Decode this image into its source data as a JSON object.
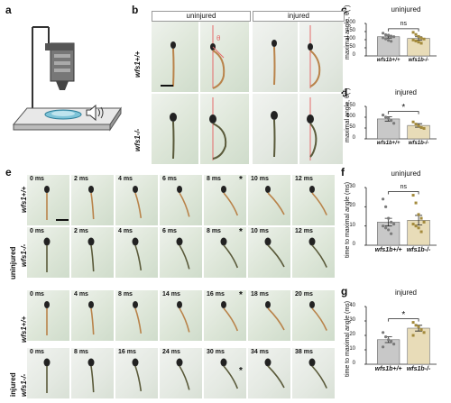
{
  "panels": {
    "a": "a",
    "b": "b",
    "c": "c",
    "d": "d",
    "e": "e",
    "f": "f",
    "g": "g"
  },
  "b": {
    "col_uninjured": "uninjured",
    "col_injured": "injured",
    "row1": "wfs1+/+",
    "row2": "wfs1-/-",
    "theta": "θ"
  },
  "e": {
    "group_uninjured": "uninjured",
    "group_injured": "injured",
    "genotype_wt": "wfs1+/+",
    "genotype_ko": "wfs1-/-",
    "row_uninj_wt": [
      "0 ms",
      "2 ms",
      "4 ms",
      "6 ms",
      "8 ms",
      "10 ms",
      "12 ms"
    ],
    "row_uninj_ko": [
      "0 ms",
      "2 ms",
      "4 ms",
      "6 ms",
      "8 ms",
      "10 ms",
      "12 ms"
    ],
    "row_inj_wt": [
      "0 ms",
      "4 ms",
      "8 ms",
      "14 ms",
      "16 ms",
      "18 ms",
      "20 ms"
    ],
    "row_inj_ko": [
      "0 ms",
      "8 ms",
      "16 ms",
      "24 ms",
      "30 ms",
      "34 ms",
      "38 ms"
    ],
    "star": "*"
  },
  "colors": {
    "wt_bar": "#c8c8c8",
    "ko_bar": "#e8dcb8",
    "wt_dot": "#7a7a7a",
    "ko_dot": "#a38a3c",
    "ref_line": "#e46a6a"
  },
  "chart_data": [
    {
      "panel": "c",
      "type": "bar",
      "title": "uninjured",
      "ylabel": "maximal angle, θ(°)",
      "categories": [
        "wfs1b+/+",
        "wfs1b-/-"
      ],
      "values": [
        118,
        108
      ],
      "errors": [
        8,
        10
      ],
      "ylim": [
        0,
        200
      ],
      "yticks": [
        0,
        50,
        100,
        150,
        200
      ],
      "significance": "ns",
      "points": [
        [
          140,
          130,
          128,
          122,
          118,
          112,
          105,
          96,
          90
        ],
        [
          145,
          132,
          120,
          110,
          104,
          98,
          92,
          85,
          78
        ]
      ]
    },
    {
      "panel": "d",
      "type": "bar",
      "title": "injured",
      "ylabel": "maximal angle, θ(°)",
      "categories": [
        "wfs1b+/+",
        "wfs1b-/-"
      ],
      "values": [
        92,
        62
      ],
      "errors": [
        10,
        8
      ],
      "ylim": [
        0,
        150
      ],
      "yticks": [
        0,
        50,
        100,
        150
      ],
      "significance": "*",
      "points": [
        [
          110,
          100,
          95,
          85,
          72
        ],
        [
          78,
          68,
          60,
          52,
          48
        ]
      ]
    },
    {
      "panel": "f",
      "type": "bar",
      "title": "uninjured",
      "ylabel": "time to maximal angle (ms)",
      "categories": [
        "wfs1b+/+",
        "wfs1b-/-"
      ],
      "values": [
        12,
        13
      ],
      "errors": [
        2,
        2.5
      ],
      "ylim": [
        0,
        30
      ],
      "yticks": [
        0,
        10,
        20,
        30
      ],
      "significance": "ns",
      "points": [
        [
          24,
          20,
          14,
          12,
          11,
          10,
          9,
          8,
          6
        ],
        [
          26,
          22,
          16,
          14,
          12,
          11,
          10,
          9,
          7
        ]
      ]
    },
    {
      "panel": "g",
      "type": "bar",
      "title": "injured",
      "ylabel": "time to maximal angle (ms)",
      "categories": [
        "wfs1b+/+",
        "wfs1b-/-"
      ],
      "values": [
        17,
        25
      ],
      "errors": [
        2,
        2
      ],
      "ylim": [
        0,
        40
      ],
      "yticks": [
        0,
        10,
        20,
        30,
        40
      ],
      "significance": "*",
      "points": [
        [
          22,
          19,
          17,
          16,
          14,
          12
        ],
        [
          29,
          27,
          26,
          24,
          22,
          20
        ]
      ]
    }
  ]
}
